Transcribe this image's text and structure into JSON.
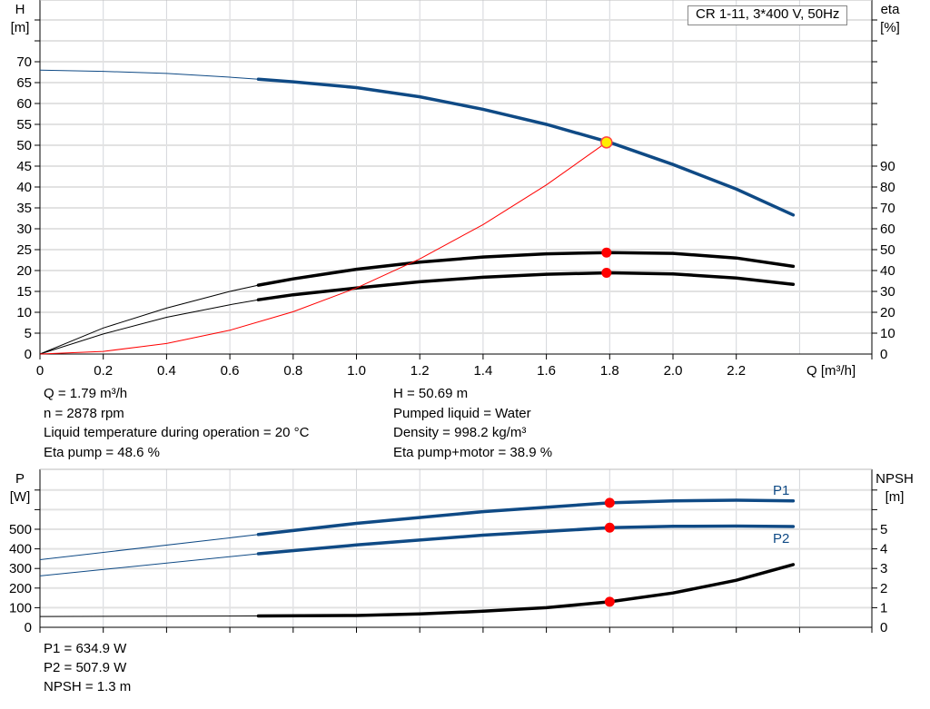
{
  "chart_data": [
    {
      "type": "line",
      "title": "CR 1-11, 3*400 V, 50Hz",
      "xlabel": "Q [m³/h]",
      "ylabel": "H\n[m]",
      "y2label": "eta\n[%]",
      "xlim": [
        0,
        2.6
      ],
      "ylim": [
        0,
        70
      ],
      "y2lim": [
        0,
        140
      ],
      "xticks": [
        "0",
        "0.2",
        "0.4",
        "0.6",
        "0.8",
        "1.0",
        "1.2",
        "1.4",
        "1.6",
        "1.8",
        "2.0",
        "2.2"
      ],
      "yticks": [
        0,
        5,
        10,
        15,
        20,
        25,
        30,
        35,
        40,
        45,
        50,
        55,
        60,
        65,
        70
      ],
      "y2ticks": [
        0,
        10,
        20,
        30,
        40,
        50,
        60,
        70,
        80,
        90
      ],
      "grid": true,
      "series": [
        {
          "id": "H",
          "axis": "left",
          "color": "#0f4a85",
          "thick_from": 0.69,
          "x": [
            0,
            0.2,
            0.4,
            0.6,
            0.69,
            0.8,
            1.0,
            1.2,
            1.4,
            1.6,
            1.8,
            2.0,
            2.2,
            2.38
          ],
          "y": [
            68,
            67.7,
            67.2,
            66.3,
            65.8,
            65.2,
            63.8,
            61.6,
            58.6,
            55,
            50.7,
            45.4,
            39.5,
            33.3
          ]
        },
        {
          "id": "eta_pump",
          "axis": "right",
          "color": "#000000",
          "thick_from": 0.69,
          "x": [
            0,
            0.2,
            0.4,
            0.6,
            0.69,
            0.8,
            1.0,
            1.2,
            1.4,
            1.6,
            1.8,
            2.0,
            2.2,
            2.38
          ],
          "y": [
            0,
            12.5,
            22,
            30,
            33,
            36,
            40.6,
            44,
            46.5,
            48,
            48.6,
            48.2,
            46,
            42
          ]
        },
        {
          "id": "eta_pump_motor",
          "axis": "right",
          "color": "#000000",
          "thick_from": 0.69,
          "x": [
            0,
            0.2,
            0.4,
            0.6,
            0.69,
            0.8,
            1.0,
            1.2,
            1.4,
            1.6,
            1.8,
            2.0,
            2.2,
            2.38
          ],
          "y": [
            0,
            9.6,
            17.6,
            23.6,
            26,
            28.4,
            31.6,
            34.6,
            36.8,
            38.2,
            38.9,
            38.4,
            36.4,
            33.4
          ]
        },
        {
          "id": "system",
          "axis": "left",
          "color": "#ff0000",
          "x": [
            0,
            0.2,
            0.4,
            0.6,
            0.8,
            1.0,
            1.2,
            1.4,
            1.6,
            1.79
          ],
          "y": [
            0,
            0.63,
            2.53,
            5.69,
            10.12,
            15.82,
            22.78,
            31.0,
            40.49,
            50.69
          ]
        }
      ],
      "duty_point": {
        "Q": 1.79,
        "H": 50.69,
        "eta_pump": 48.6,
        "eta_pump_motor": 38.9
      }
    },
    {
      "type": "line",
      "ylabel": "P\n[W]",
      "y2label": "NPSH\n[m]",
      "xlim": [
        0,
        2.6
      ],
      "ylim": [
        0,
        800
      ],
      "y2lim": [
        0,
        8
      ],
      "yticks": [
        0,
        100,
        200,
        300,
        400,
        500
      ],
      "y2ticks": [
        0,
        1,
        2,
        3,
        4,
        5
      ],
      "grid": true,
      "series": [
        {
          "name": "P1",
          "axis": "left",
          "color": "#0f4a85",
          "thick_from": 0.69,
          "x": [
            0,
            0.69,
            1.0,
            1.4,
            1.8,
            2.0,
            2.2,
            2.38
          ],
          "y": [
            345,
            473,
            530,
            590,
            634.9,
            645,
            648,
            645
          ]
        },
        {
          "name": "P2",
          "axis": "left",
          "color": "#0f4a85",
          "thick_from": 0.69,
          "x": [
            0,
            0.69,
            1.0,
            1.4,
            1.8,
            2.0,
            2.2,
            2.38
          ],
          "y": [
            262,
            375,
            420,
            470,
            507.9,
            515,
            516,
            514
          ]
        },
        {
          "id": "NPSH",
          "axis": "right",
          "color": "#000000",
          "thick_from": 0.69,
          "x": [
            0,
            0.69,
            1.0,
            1.2,
            1.4,
            1.6,
            1.8,
            2.0,
            2.2,
            2.38
          ],
          "y": [
            0.55,
            0.58,
            0.6,
            0.68,
            0.82,
            1.0,
            1.3,
            1.75,
            2.4,
            3.2
          ]
        }
      ]
    }
  ],
  "info": {
    "q": "Q = 1.79 m³/h",
    "n": "n = 2878 rpm",
    "temp": "Liquid temperature during operation = 20 °C",
    "eta_pump": "Eta pump = 48.6 %",
    "h": "H = 50.69 m",
    "liquid": "Pumped liquid = Water",
    "density": "Density = 998.2 kg/m³",
    "eta_pm": "Eta pump+motor = 38.9 %",
    "p1": "P1 = 634.9 W",
    "p2": "P2 = 507.9 W",
    "npsh": "NPSH = 1.3 m"
  }
}
